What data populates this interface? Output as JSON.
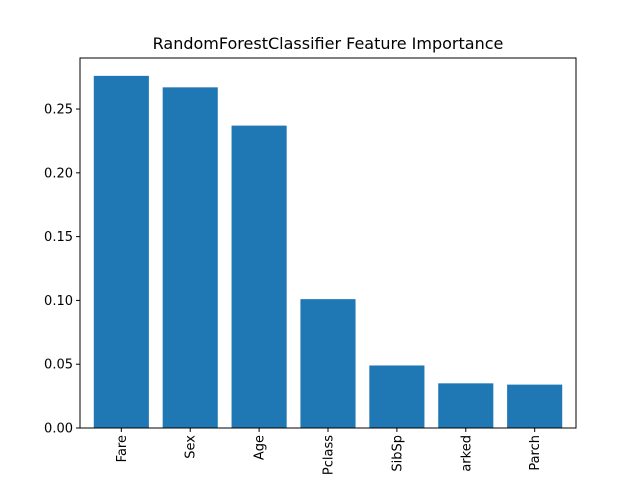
{
  "chart_data": {
    "type": "bar",
    "title": "RandomForestClassifier Feature Importance",
    "xlabel": "",
    "ylabel": "",
    "categories": [
      "Fare",
      "Sex",
      "Age",
      "Pclass",
      "SibSp",
      "arked",
      "Parch"
    ],
    "values": [
      0.276,
      0.267,
      0.237,
      0.101,
      0.049,
      0.035,
      0.034
    ],
    "ylim": [
      0,
      0.29
    ],
    "yticks": [
      "0.00",
      "0.05",
      "0.10",
      "0.15",
      "0.20",
      "0.25"
    ],
    "ytick_values": [
      0,
      0.05,
      0.1,
      0.15,
      0.2,
      0.25
    ],
    "grid": false,
    "x_tick_rotation": "vertical",
    "colors": {
      "bar": "#1f77b4",
      "axes": "#000000",
      "background": "#ffffff"
    }
  }
}
